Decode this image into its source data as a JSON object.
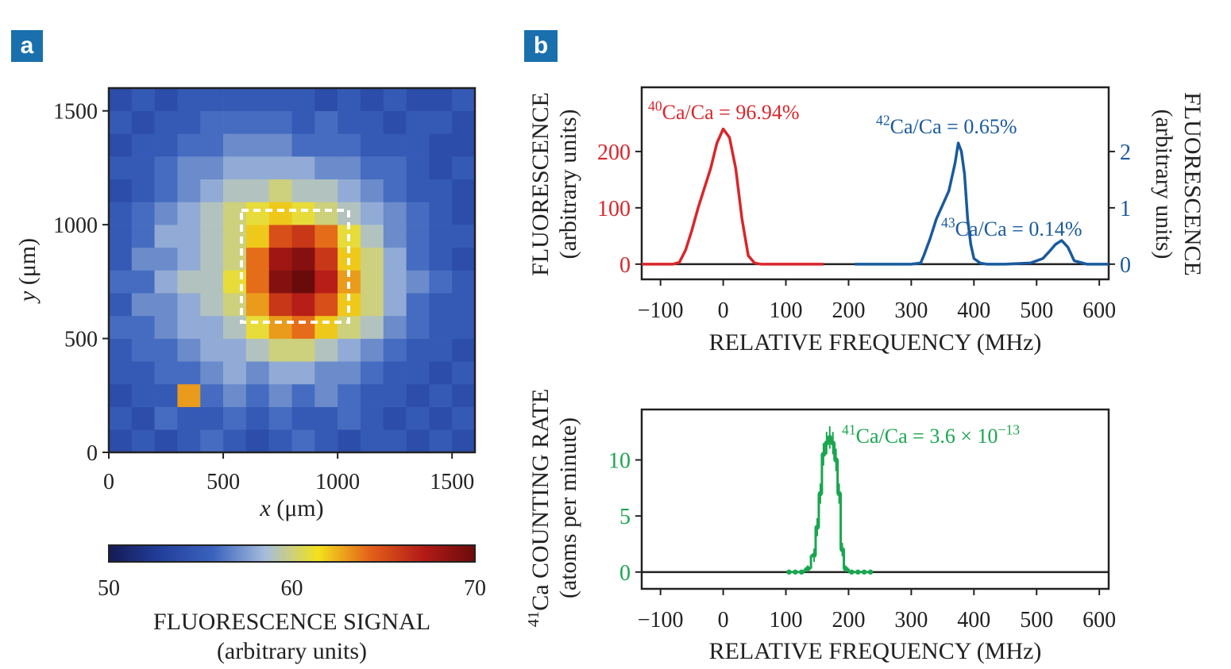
{
  "panel_labels": [
    "a",
    "b"
  ],
  "chart_data": [
    {
      "type": "heatmap",
      "xlabel": [
        {
          "text": "x",
          "italic": true
        },
        {
          "text": " (μm)"
        }
      ],
      "ylabel": [
        {
          "text": "y",
          "italic": true
        },
        {
          "text": " (μm)"
        }
      ],
      "xlim": [
        0,
        1600
      ],
      "ylim": [
        0,
        1600
      ],
      "xticks": [
        0,
        500,
        1000,
        1500
      ],
      "yticks": [
        0,
        500,
        1000,
        1500
      ],
      "xbins": [
        0,
        100,
        200,
        300,
        400,
        500,
        600,
        700,
        800,
        900,
        1000,
        1100,
        1200,
        1300,
        1400,
        1500,
        1600
      ],
      "ybins": [
        0,
        100,
        200,
        300,
        400,
        500,
        600,
        700,
        800,
        900,
        1000,
        1100,
        1200,
        1300,
        1400,
        1500,
        1600
      ],
      "z": [
        [
          54,
          55,
          54,
          55,
          56,
          55,
          54,
          55,
          56,
          55,
          54,
          55,
          55,
          54,
          55,
          54
        ],
        [
          55,
          54,
          56,
          55,
          55,
          56,
          55,
          56,
          55,
          55,
          56,
          55,
          54,
          55,
          54,
          55
        ],
        [
          54,
          55,
          55,
          63,
          56,
          57,
          56,
          57,
          56,
          57,
          56,
          55,
          55,
          54,
          55,
          54
        ],
        [
          55,
          55,
          56,
          56,
          57,
          58,
          57,
          58,
          58,
          57,
          57,
          56,
          55,
          55,
          54,
          55
        ],
        [
          55,
          56,
          56,
          57,
          58,
          58,
          59,
          60,
          60,
          59,
          58,
          57,
          56,
          55,
          55,
          54
        ],
        [
          56,
          56,
          57,
          58,
          58,
          59,
          61,
          63,
          64,
          62,
          60,
          59,
          57,
          56,
          55,
          55
        ],
        [
          55,
          57,
          57,
          58,
          59,
          60,
          63,
          66,
          67,
          65,
          62,
          60,
          58,
          56,
          55,
          55
        ],
        [
          56,
          56,
          58,
          59,
          59,
          61,
          64,
          69,
          70,
          67,
          63,
          60,
          58,
          57,
          56,
          55
        ],
        [
          55,
          57,
          57,
          58,
          59,
          60,
          64,
          68,
          69,
          66,
          62,
          60,
          58,
          56,
          55,
          54
        ],
        [
          55,
          56,
          58,
          58,
          59,
          60,
          62,
          65,
          66,
          64,
          61,
          59,
          57,
          56,
          55,
          55
        ],
        [
          55,
          56,
          57,
          58,
          59,
          60,
          61,
          62,
          61,
          60,
          59,
          58,
          57,
          56,
          55,
          54
        ],
        [
          54,
          55,
          56,
          57,
          58,
          59,
          59,
          60,
          59,
          59,
          58,
          57,
          56,
          55,
          55,
          54
        ],
        [
          55,
          55,
          56,
          57,
          57,
          58,
          58,
          58,
          58,
          57,
          57,
          56,
          56,
          55,
          54,
          55
        ],
        [
          54,
          55,
          55,
          56,
          56,
          57,
          57,
          57,
          56,
          56,
          56,
          55,
          55,
          55,
          54,
          54
        ],
        [
          55,
          54,
          55,
          55,
          56,
          56,
          56,
          56,
          55,
          56,
          55,
          55,
          54,
          55,
          55,
          54
        ],
        [
          54,
          55,
          54,
          55,
          55,
          55,
          55,
          55,
          55,
          54,
          55,
          54,
          55,
          54,
          54,
          55
        ]
      ],
      "clim": [
        50,
        70
      ],
      "cticks": [
        50,
        60,
        70
      ],
      "colormap": [
        "#141a55",
        "#233f9c",
        "#3a63bd",
        "#a7bddc",
        "#f2e21c",
        "#e3601a",
        "#b51b17",
        "#6a0b0b"
      ],
      "colorbar_label": [
        "FLUORESCENCE SIGNAL",
        "(arbitrary units)"
      ]
    },
    {
      "type": "line",
      "xlabel": [
        {
          "text": "RELATIVE FREQUENCY (MHz)"
        }
      ],
      "ylabel": [
        [
          {
            "text": "FLUORESCENCE"
          }
        ],
        [
          {
            "text": "(arbitrary units)"
          }
        ]
      ],
      "y2label": [
        [
          {
            "text": "FLUORESCENCE"
          }
        ],
        [
          {
            "text": "(arbitrary units)"
          }
        ]
      ],
      "xlim": [
        -130,
        615
      ],
      "xticks": [
        {
          "value": -100,
          "label": "−100"
        },
        0,
        100,
        200,
        300,
        400,
        500,
        600
      ],
      "ylim": [
        -27,
        314
      ],
      "yticks": [
        0,
        100,
        200
      ],
      "y2lim": [
        -0.27,
        3.14
      ],
      "y2ticks": [
        0,
        1,
        2
      ],
      "hline": 0,
      "series": [
        {
          "color": "#d9262c",
          "axis": "y",
          "x": [
            -130,
            -80,
            -70,
            -60,
            -50,
            -40,
            -30,
            -20,
            -10,
            0,
            10,
            20,
            30,
            40,
            50,
            60,
            160
          ],
          "values": [
            0,
            0,
            3,
            25,
            60,
            100,
            135,
            170,
            215,
            240,
            225,
            170,
            80,
            15,
            2,
            0,
            0
          ]
        },
        {
          "color": "#1a5a9e",
          "axis": "y2",
          "x": [
            210,
            300,
            315,
            320,
            330,
            340,
            350,
            360,
            370,
            375,
            380,
            385,
            390,
            395,
            400,
            410,
            420,
            450,
            490,
            510,
            520,
            530,
            540,
            550,
            560,
            580,
            615
          ],
          "values": [
            0,
            0,
            0.02,
            0.15,
            0.45,
            0.8,
            1.05,
            1.3,
            1.8,
            2.15,
            2.0,
            1.6,
            0.8,
            0.35,
            0.1,
            0.02,
            0,
            0,
            0.02,
            0.1,
            0.22,
            0.35,
            0.42,
            0.3,
            0.06,
            0,
            0
          ]
        }
      ],
      "annotations": [
        {
          "color": "#d9262c",
          "parts": [
            {
              "text": "40",
              "sup": true
            },
            {
              "text": "Ca/Ca = 96.94%"
            }
          ]
        },
        {
          "color": "#1a5a9e",
          "parts": [
            {
              "text": "42",
              "sup": true
            },
            {
              "text": "Ca/Ca = 0.65%"
            }
          ]
        },
        {
          "color": "#1a5a9e",
          "parts": [
            {
              "text": "43",
              "sup": true
            },
            {
              "text": "Ca/Ca = 0.14%"
            }
          ]
        }
      ]
    },
    {
      "type": "line",
      "xlabel": [
        {
          "text": "RELATIVE FREQUENCY (MHz)"
        }
      ],
      "ylabel": [
        [
          {
            "text": "41",
            "sup": true
          },
          {
            "text": "Ca COUNTING RATE"
          }
        ],
        [
          {
            "text": "(atoms per minute)"
          }
        ]
      ],
      "xlim": [
        -130,
        615
      ],
      "xticks": [
        {
          "value": -100,
          "label": "−100"
        },
        0,
        100,
        200,
        300,
        400,
        500,
        600
      ],
      "ylim": [
        -1.5,
        14.5
      ],
      "yticks": [
        0,
        5,
        10
      ],
      "hline": 0,
      "step": true,
      "markers": true,
      "series": [
        {
          "color": "#1aa650",
          "axis": "y",
          "x": [
            105,
            115,
            125,
            135,
            145,
            150,
            155,
            160,
            165,
            170,
            175,
            180,
            185,
            190,
            195,
            205,
            215,
            225,
            235
          ],
          "values": [
            0,
            0,
            0,
            0.3,
            1.5,
            4,
            7,
            10.5,
            11.5,
            12,
            11.5,
            10,
            7,
            2,
            0.3,
            0,
            0,
            0,
            0
          ],
          "errors": [
            0,
            0,
            0,
            0.3,
            0.6,
            0.8,
            0.9,
            1,
            1,
            1,
            1,
            1,
            0.9,
            0.6,
            0.3,
            0,
            0,
            0,
            0
          ]
        }
      ],
      "annotations": [
        {
          "color": "#1aa650",
          "parts": [
            {
              "text": "41",
              "sup": true
            },
            {
              "text": "Ca/Ca = 3.6 × 10"
            },
            {
              "text": "−13",
              "sup": true
            }
          ]
        }
      ]
    }
  ]
}
